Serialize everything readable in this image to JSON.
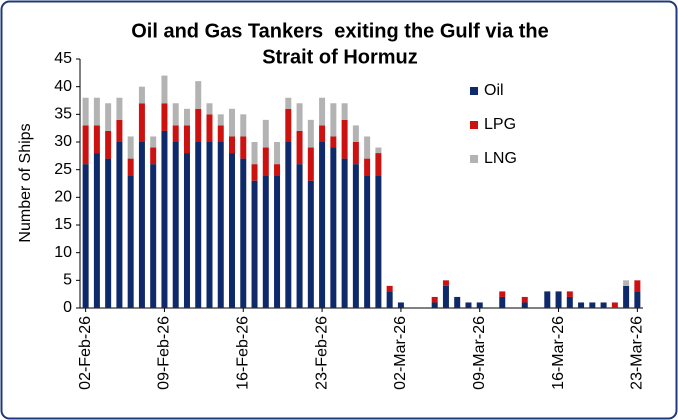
{
  "chart_data": {
    "type": "stacked_bar",
    "title": [
      "Oil and Gas Tankers  exiting the Gulf via the",
      "Strait of Hormuz"
    ],
    "y_label": "Number of Ships",
    "categories": [
      "02-Feb-26",
      null,
      null,
      null,
      null,
      null,
      null,
      "09-Feb-26",
      null,
      null,
      null,
      null,
      null,
      null,
      "16-Feb-26",
      null,
      null,
      null,
      null,
      null,
      null,
      "23-Feb-26",
      null,
      null,
      null,
      null,
      null,
      null,
      "02-Mar-26",
      null,
      null,
      null,
      null,
      null,
      null,
      "09-Mar-26",
      null,
      null,
      null,
      null,
      null,
      null,
      "16-Mar-26",
      null,
      null,
      null,
      null,
      null,
      null,
      "23-Mar-26"
    ],
    "series": [
      {
        "name": "Oil",
        "color": "#0f2a6b",
        "values": [
          26,
          28,
          27,
          30,
          24,
          30,
          26,
          32,
          30,
          28,
          30,
          30,
          30,
          28,
          27,
          23,
          24,
          24,
          30,
          26,
          23,
          30,
          29,
          27,
          26,
          24,
          24,
          3,
          1,
          0,
          0,
          1,
          4,
          2,
          1,
          1,
          0,
          2,
          0,
          1,
          0,
          3,
          3,
          2,
          1,
          1,
          1,
          0,
          4,
          3
        ]
      },
      {
        "name": "LPG",
        "color": "#cc1111",
        "values": [
          7,
          5,
          5,
          4,
          3,
          7,
          3,
          5,
          3,
          5,
          6,
          5,
          3,
          3,
          4,
          3,
          5,
          2,
          6,
          6,
          6,
          3,
          2,
          7,
          4,
          3,
          4,
          1,
          0,
          0,
          0,
          1,
          1,
          0,
          0,
          0,
          0,
          1,
          0,
          1,
          0,
          0,
          0,
          1,
          0,
          0,
          0,
          1,
          0,
          2
        ]
      },
      {
        "name": "LNG",
        "color": "#b3b3b3",
        "values": [
          5,
          5,
          5,
          4,
          4,
          3,
          2,
          5,
          4,
          3,
          5,
          2,
          2,
          5,
          4,
          4,
          5,
          4,
          2,
          5,
          5,
          5,
          6,
          3,
          3,
          4,
          1,
          0,
          0,
          0,
          0,
          0,
          0,
          0,
          0,
          0,
          0,
          0,
          0,
          0,
          0,
          0,
          0,
          0,
          0,
          0,
          0,
          0,
          1,
          0
        ]
      }
    ],
    "ylim": [
      0,
      45
    ],
    "yticks": [
      0,
      5,
      10,
      15,
      20,
      25,
      30,
      35,
      40,
      45
    ],
    "grid": false,
    "legend": "upper right"
  }
}
